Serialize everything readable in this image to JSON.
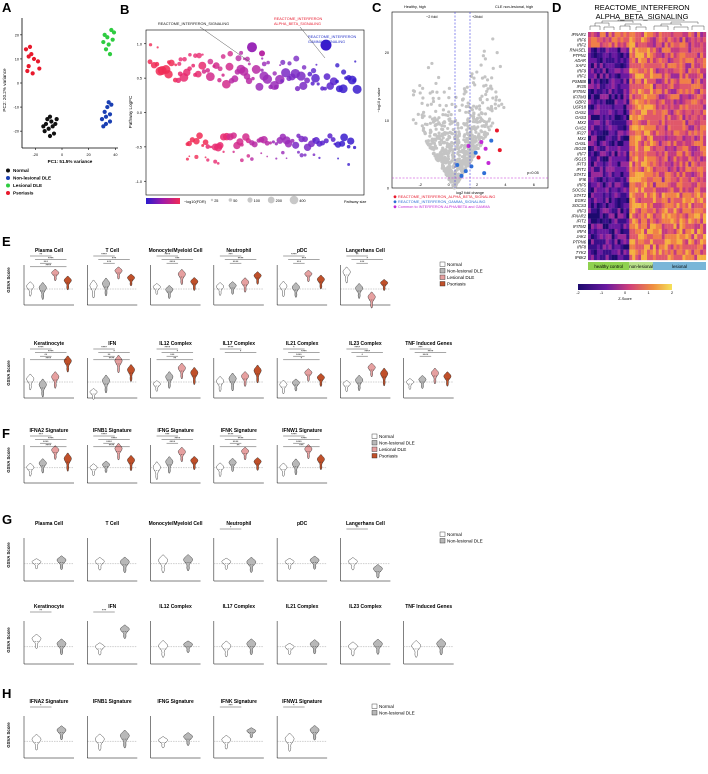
{
  "panels": {
    "A": {
      "label": "A",
      "xlabel": "PC1: 51.5% variance",
      "ylabel": "PC2: 20.2% variance",
      "xticks": [
        "-20",
        "0",
        "20",
        "40"
      ],
      "yticks": [
        "20",
        "10",
        "0",
        "-10",
        "-20"
      ],
      "legend": [
        "Normal",
        "Non-lesional DLE",
        "Lesional DLE",
        "Psoriasis"
      ],
      "colors": {
        "Normal": "#111111",
        "Non-lesional DLE": "#1a3fb3",
        "Lesional DLE": "#2ecc40",
        "Psoriasis": "#e8192c"
      }
    },
    "B": {
      "label": "B",
      "ylabel": "Pathway LogFC",
      "yticks": [
        "1.0",
        "0.5",
        "0.0",
        "-0.5",
        "-1.0"
      ],
      "ann1": "REACTOME_INTERFERON_SIGNALING",
      "ann2a": "REACTOME_INTERFERON",
      "ann2b": "ALPHA_BETA_SIGNALING",
      "ann3a": "REACTOME_INTERFERON",
      "ann3b": "GAMMA_SIGNALING",
      "legend_fdr": "−log10(FDR)",
      "legend_size_title": "Pathway size",
      "size_labels": [
        "25",
        "50",
        "100",
        "200",
        "400"
      ]
    },
    "C": {
      "label": "C",
      "left_label": "Healthy, high",
      "right_label": "CLE non-lesional, high",
      "thr_left": "−2 fold",
      "thr_right": "+2fold",
      "p_label": "p=0.05",
      "xlabel": "log2 fold change",
      "ylabel": "−log10 p value",
      "yticks": [
        "20",
        "10",
        "0"
      ],
      "xticks": [
        "-2",
        "0",
        "2",
        "4",
        "6"
      ],
      "legend": [
        "REACTOME_INTERFERON_ALPHA_BETA_SIGNALING",
        "REACTOME_INTERFERON_GAMMA_SIGNALING",
        "Common to INTERFERON ALPHA/BETA and GAMMA"
      ],
      "legend_colors": [
        "#e8192c",
        "#2f6fd6",
        "#c22ad6"
      ]
    },
    "D": {
      "label": "D",
      "title1": "REACTOME_INTERFERON",
      "title2": "ALPHA_BETA_SIGNALING",
      "genes": [
        "IFNAR1",
        "IRF6",
        "IRF2",
        "RNASEL",
        "PTPN1",
        "ADAR",
        "XAF1",
        "IRF9",
        "IRF1",
        "PSMB8",
        "IFI35",
        "IFITM1",
        "IFITM3",
        "GBP2",
        "USP18",
        "OAS1",
        "OAS3",
        "MX2",
        "OAS2",
        "IFI27",
        "MX1",
        "OASL",
        "ISG20",
        "IRF7",
        "ISG15",
        "IFIT3",
        "IFIT1",
        "STAT1",
        "IFI6",
        "IRF5",
        "SOCS1",
        "STAT2",
        "EGR1",
        "SOCS3",
        "IRF3",
        "IFNAR2",
        "IFIT2",
        "IFITM2",
        "IRF4",
        "JAK1",
        "PTPN6",
        "IRF8",
        "TYK2",
        "IP6K2"
      ],
      "groups": [
        "healthy control",
        "non-lesional",
        "lesional"
      ],
      "group_colors": [
        "#8fd14f",
        "#b8e08a",
        "#7ab6d8"
      ],
      "colorbar_label": "Z-Score",
      "colorbar_ticks": [
        "-2",
        "-1",
        "0",
        "1",
        "2"
      ]
    }
  },
  "section_labels": {
    "E": "E",
    "F": "F",
    "G": "G",
    "H": "H"
  },
  "legend4": [
    "Normal",
    "Non-lesional DLE",
    "Lesional DLE",
    "Psoriasis"
  ],
  "legend2": [
    "Normal",
    "Non-lesional DLE"
  ],
  "group_colors": {
    "Normal": "#ffffff",
    "Non-lesional DLE": "#b8b8b8",
    "Lesional DLE": "#e6a0a0",
    "Psoriasis": "#c0502a"
  },
  "ylabel_gsva": "GSVA Score",
  "E": {
    "row1": [
      "Plasma Cell",
      "T Cell",
      "Monocyte/Myeloid Cell",
      "Neutrophil",
      "pDC",
      "Langerhans Cell"
    ],
    "row2": [
      "Keratinocyte",
      "IFN",
      "IL12 Complex",
      "IL17 Complex",
      "IL21 Complex",
      "IL23 Complex",
      "TNF Induced Genes"
    ]
  },
  "F": {
    "row": [
      "IFNA2 Signature",
      "IFNB1 Signature",
      "IFNG Signature",
      "IFNK Signature",
      "IFNW1 Signature"
    ]
  },
  "G": {
    "row1": [
      "Plasma Cell",
      "T Cell",
      "Monocyte/Myeloid Cell",
      "Neutrophil",
      "pDC",
      "Langerhans Cell"
    ],
    "row2": [
      "Keratinocyte",
      "IFN",
      "IL12 Complex",
      "IL17 Complex",
      "IL21 Complex",
      "IL23 Complex",
      "TNF Induced Genes"
    ],
    "sig1": [
      "",
      "",
      "",
      "*",
      "",
      "**"
    ],
    "sig2": [
      "**",
      "***",
      "",
      "",
      "",
      "",
      ""
    ]
  },
  "H": {
    "row": [
      "IFNA2 Signature",
      "IFNB1 Signature",
      "IFNG Signature",
      "IFNK Signature",
      "IFNW1 Signature"
    ],
    "sig": [
      "*",
      "",
      "",
      "***",
      "*"
    ]
  },
  "stars": {
    "s1": "*",
    "s2": "**",
    "s3": "***",
    "s4": "****"
  },
  "chart_data": [
    {
      "type": "scatter",
      "title": "",
      "xlabel": "PC1: 51.5% variance",
      "ylabel": "PC2: 20.2% variance",
      "xlim": [
        -30,
        42
      ],
      "ylim": [
        -27,
        27
      ],
      "series": [
        {
          "name": "Normal",
          "points": [
            [
              -10,
              -19
            ],
            [
              -12,
              -17
            ],
            [
              -8,
              -16
            ],
            [
              -13,
              -20
            ],
            [
              -9,
              -22
            ],
            [
              -7,
              -18
            ],
            [
              -11,
              -15
            ],
            [
              -5,
              -17
            ],
            [
              -6,
              -21
            ],
            [
              -14,
              -18
            ],
            [
              -4,
              -15
            ],
            [
              -9,
              -14
            ]
          ]
        },
        {
          "name": "Non-lesional DLE",
          "points": [
            [
              30,
              -15
            ],
            [
              32,
              -12
            ],
            [
              33,
              -17
            ],
            [
              34,
              -10
            ],
            [
              36,
              -13
            ],
            [
              35,
              -8
            ],
            [
              31,
              -18
            ],
            [
              37,
              -9
            ],
            [
              33,
              -14
            ],
            [
              36,
              -16
            ]
          ]
        },
        {
          "name": "Lesional DLE",
          "points": [
            [
              31,
              17
            ],
            [
              34,
              19
            ],
            [
              37,
              22
            ],
            [
              33,
              14
            ],
            [
              38,
              18
            ],
            [
              36,
              12
            ],
            [
              32,
              20
            ],
            [
              35,
              16
            ],
            [
              39,
              21
            ]
          ]
        },
        {
          "name": "Psoriasis",
          "points": [
            [
              -27,
              14
            ],
            [
              -25,
              11
            ],
            [
              -23,
              12
            ],
            [
              -21,
              10
            ],
            [
              -25,
              7
            ],
            [
              -26,
              5
            ],
            [
              -22,
              4
            ],
            [
              -17,
              6
            ],
            [
              -24,
              15
            ],
            [
              -18,
              9
            ]
          ]
        }
      ]
    },
    {
      "type": "scatter",
      "title": "",
      "ylabel": "Pathway LogFC",
      "ylim": [
        -1.2,
        1.2
      ],
      "note": "bubble plot of pathways, colored by −log10(FDR), sized by pathway size"
    },
    {
      "type": "scatter",
      "title": "",
      "xlabel": "log2 fold change",
      "ylabel": "−log10 p value",
      "xlim": [
        -4,
        7
      ],
      "ylim": [
        0,
        26
      ]
    },
    {
      "type": "heatmap",
      "title": "REACTOME_INTERFERON ALPHA_BETA_SIGNALING",
      "rows": 44,
      "columns": 40
    }
  ]
}
